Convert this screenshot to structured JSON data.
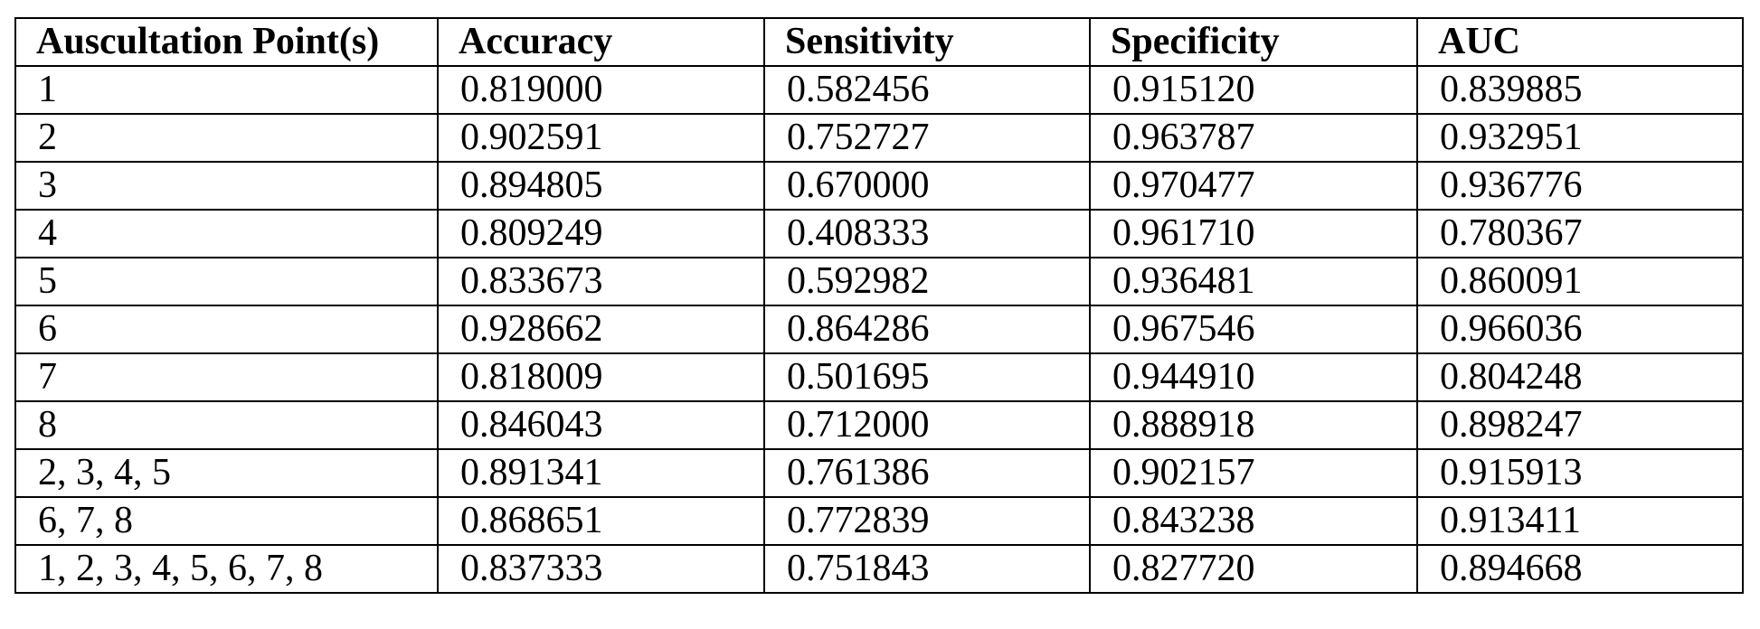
{
  "table": {
    "header": [
      "Auscultation Point(s)",
      "Accuracy",
      "Sensitivity",
      "Specificity",
      "AUC"
    ],
    "rows": [
      [
        "1",
        "0.819000",
        "0.582456",
        "0.915120",
        "0.839885"
      ],
      [
        "2",
        "0.902591",
        "0.752727",
        "0.963787",
        "0.932951"
      ],
      [
        "3",
        "0.894805",
        "0.670000",
        "0.970477",
        "0.936776"
      ],
      [
        "4",
        "0.809249",
        "0.408333",
        "0.961710",
        "0.780367"
      ],
      [
        "5",
        "0.833673",
        "0.592982",
        "0.936481",
        "0.860091"
      ],
      [
        "6",
        "0.928662",
        "0.864286",
        "0.967546",
        "0.966036"
      ],
      [
        "7",
        "0.818009",
        "0.501695",
        "0.944910",
        "0.804248"
      ],
      [
        "8",
        "0.846043",
        "0.712000",
        "0.888918",
        "0.898247"
      ],
      [
        "2, 3, 4, 5",
        "0.891341",
        "0.761386",
        "0.902157",
        "0.915913"
      ],
      [
        "6, 7, 8",
        "0.868651",
        "0.772839",
        "0.843238",
        "0.913411"
      ],
      [
        "1, 2, 3, 4, 5, 6, 7, 8",
        "0.837333",
        "0.751843",
        "0.827720",
        "0.894668"
      ]
    ]
  }
}
